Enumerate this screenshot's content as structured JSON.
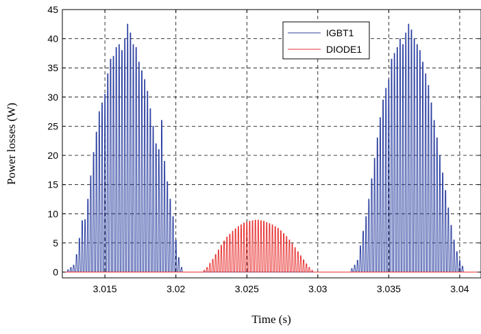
{
  "chart_data": {
    "type": "line",
    "title": "",
    "xlabel": "Time (s)",
    "ylabel": "Power losses (W)",
    "xlim": [
      3.012,
      3.0415
    ],
    "ylim": [
      -1,
      45
    ],
    "xticks": [
      3.015,
      3.02,
      3.025,
      3.03,
      3.035,
      3.04
    ],
    "xtick_labels": [
      "3.015",
      "3.02",
      "3.025",
      "3.03",
      "3.035",
      "3.04"
    ],
    "yticks": [
      0,
      5,
      10,
      15,
      20,
      25,
      30,
      35,
      40,
      45
    ],
    "ytick_labels": [
      "0",
      "5",
      "10",
      "15",
      "20",
      "25",
      "30",
      "35",
      "40",
      "45"
    ],
    "grid": true,
    "grid_style": "dashed",
    "legend_position": "top-right",
    "series": [
      {
        "name": "IGBT1",
        "color": "#2b3fa0",
        "pulse_period": 0.0002,
        "peaks": [
          {
            "t": 3.0124,
            "v": 0.4
          },
          {
            "t": 3.0126,
            "v": 0.8
          },
          {
            "t": 3.0128,
            "v": 1.2
          },
          {
            "t": 3.013,
            "v": 3.0
          },
          {
            "t": 3.0132,
            "v": 5.8
          },
          {
            "t": 3.0134,
            "v": 8.8
          },
          {
            "t": 3.0136,
            "v": 9.0
          },
          {
            "t": 3.0138,
            "v": 12.5
          },
          {
            "t": 3.014,
            "v": 16.5
          },
          {
            "t": 3.0142,
            "v": 20.5
          },
          {
            "t": 3.0144,
            "v": 24.0
          },
          {
            "t": 3.0146,
            "v": 27.5
          },
          {
            "t": 3.0148,
            "v": 29.0
          },
          {
            "t": 3.015,
            "v": 30.5
          },
          {
            "t": 3.0152,
            "v": 34.0
          },
          {
            "t": 3.0154,
            "v": 36.5
          },
          {
            "t": 3.0156,
            "v": 37.0
          },
          {
            "t": 3.0158,
            "v": 38.5
          },
          {
            "t": 3.016,
            "v": 39.0
          },
          {
            "t": 3.0162,
            "v": 38.0
          },
          {
            "t": 3.0164,
            "v": 40.0
          },
          {
            "t": 3.0166,
            "v": 42.5
          },
          {
            "t": 3.0168,
            "v": 41.0
          },
          {
            "t": 3.017,
            "v": 39.0
          },
          {
            "t": 3.0172,
            "v": 38.5
          },
          {
            "t": 3.0174,
            "v": 36.0
          },
          {
            "t": 3.0176,
            "v": 34.5
          },
          {
            "t": 3.0178,
            "v": 33.0
          },
          {
            "t": 3.018,
            "v": 31.0
          },
          {
            "t": 3.0182,
            "v": 28.0
          },
          {
            "t": 3.0184,
            "v": 25.0
          },
          {
            "t": 3.0186,
            "v": 22.0
          },
          {
            "t": 3.0188,
            "v": 21.0
          },
          {
            "t": 3.019,
            "v": 26.0
          },
          {
            "t": 3.0192,
            "v": 19.0
          },
          {
            "t": 3.0194,
            "v": 15.5
          },
          {
            "t": 3.0196,
            "v": 12.5
          },
          {
            "t": 3.0198,
            "v": 9.5
          },
          {
            "t": 3.02,
            "v": 5.5
          },
          {
            "t": 3.0202,
            "v": 2.5
          },
          {
            "t": 3.0204,
            "v": 0.8
          },
          {
            "t": 3.0324,
            "v": 0.6
          },
          {
            "t": 3.0326,
            "v": 1.2
          },
          {
            "t": 3.0328,
            "v": 2.0
          },
          {
            "t": 3.033,
            "v": 4.5
          },
          {
            "t": 3.0332,
            "v": 7.0
          },
          {
            "t": 3.0334,
            "v": 9.5
          },
          {
            "t": 3.0336,
            "v": 12.5
          },
          {
            "t": 3.0338,
            "v": 16.0
          },
          {
            "t": 3.034,
            "v": 19.5
          },
          {
            "t": 3.0342,
            "v": 23.0
          },
          {
            "t": 3.0344,
            "v": 26.5
          },
          {
            "t": 3.0346,
            "v": 29.5
          },
          {
            "t": 3.0348,
            "v": 31.5
          },
          {
            "t": 3.035,
            "v": 33.0
          },
          {
            "t": 3.0352,
            "v": 36.5
          },
          {
            "t": 3.0354,
            "v": 37.5
          },
          {
            "t": 3.0356,
            "v": 38.5
          },
          {
            "t": 3.0358,
            "v": 40.0
          },
          {
            "t": 3.036,
            "v": 39.0
          },
          {
            "t": 3.0362,
            "v": 41.0
          },
          {
            "t": 3.0364,
            "v": 42.5
          },
          {
            "t": 3.0366,
            "v": 41.5
          },
          {
            "t": 3.0368,
            "v": 40.0
          },
          {
            "t": 3.037,
            "v": 39.0
          },
          {
            "t": 3.0372,
            "v": 38.0
          },
          {
            "t": 3.0374,
            "v": 36.0
          },
          {
            "t": 3.0376,
            "v": 34.0
          },
          {
            "t": 3.0378,
            "v": 32.0
          },
          {
            "t": 3.038,
            "v": 29.0
          },
          {
            "t": 3.0382,
            "v": 26.0
          },
          {
            "t": 3.0384,
            "v": 23.0
          },
          {
            "t": 3.0386,
            "v": 20.0
          },
          {
            "t": 3.0388,
            "v": 17.0
          },
          {
            "t": 3.039,
            "v": 14.0
          },
          {
            "t": 3.0392,
            "v": 11.0
          },
          {
            "t": 3.0394,
            "v": 8.0
          },
          {
            "t": 3.0396,
            "v": 5.5
          },
          {
            "t": 3.0398,
            "v": 3.5
          },
          {
            "t": 3.04,
            "v": 2.0
          },
          {
            "t": 3.0402,
            "v": 1.0
          }
        ]
      },
      {
        "name": "DIODE1",
        "color": "#e83030",
        "pulse_period": 0.0002,
        "peaks": [
          {
            "t": 3.022,
            "v": 0.3
          },
          {
            "t": 3.0222,
            "v": 0.8
          },
          {
            "t": 3.0224,
            "v": 1.5
          },
          {
            "t": 3.0226,
            "v": 2.2
          },
          {
            "t": 3.0228,
            "v": 3.0
          },
          {
            "t": 3.023,
            "v": 3.8
          },
          {
            "t": 3.0232,
            "v": 4.6
          },
          {
            "t": 3.0234,
            "v": 5.3
          },
          {
            "t": 3.0236,
            "v": 6.0
          },
          {
            "t": 3.0238,
            "v": 6.5
          },
          {
            "t": 3.024,
            "v": 7.0
          },
          {
            "t": 3.0242,
            "v": 7.4
          },
          {
            "t": 3.0244,
            "v": 7.8
          },
          {
            "t": 3.0246,
            "v": 8.1
          },
          {
            "t": 3.0248,
            "v": 8.4
          },
          {
            "t": 3.025,
            "v": 8.6
          },
          {
            "t": 3.0252,
            "v": 8.7
          },
          {
            "t": 3.0254,
            "v": 8.8
          },
          {
            "t": 3.0256,
            "v": 8.9
          },
          {
            "t": 3.0258,
            "v": 8.9
          },
          {
            "t": 3.026,
            "v": 8.8
          },
          {
            "t": 3.0262,
            "v": 8.7
          },
          {
            "t": 3.0264,
            "v": 8.5
          },
          {
            "t": 3.0266,
            "v": 8.3
          },
          {
            "t": 3.0268,
            "v": 8.1
          },
          {
            "t": 3.027,
            "v": 7.8
          },
          {
            "t": 3.0272,
            "v": 7.5
          },
          {
            "t": 3.0274,
            "v": 7.1
          },
          {
            "t": 3.0276,
            "v": 6.6
          },
          {
            "t": 3.0278,
            "v": 6.1
          },
          {
            "t": 3.028,
            "v": 5.5
          },
          {
            "t": 3.0282,
            "v": 4.9
          },
          {
            "t": 3.0284,
            "v": 4.2
          },
          {
            "t": 3.0286,
            "v": 3.5
          },
          {
            "t": 3.0288,
            "v": 2.8
          },
          {
            "t": 3.029,
            "v": 2.1
          },
          {
            "t": 3.0292,
            "v": 1.4
          },
          {
            "t": 3.0294,
            "v": 0.8
          },
          {
            "t": 3.0296,
            "v": 0.3
          }
        ]
      }
    ]
  }
}
